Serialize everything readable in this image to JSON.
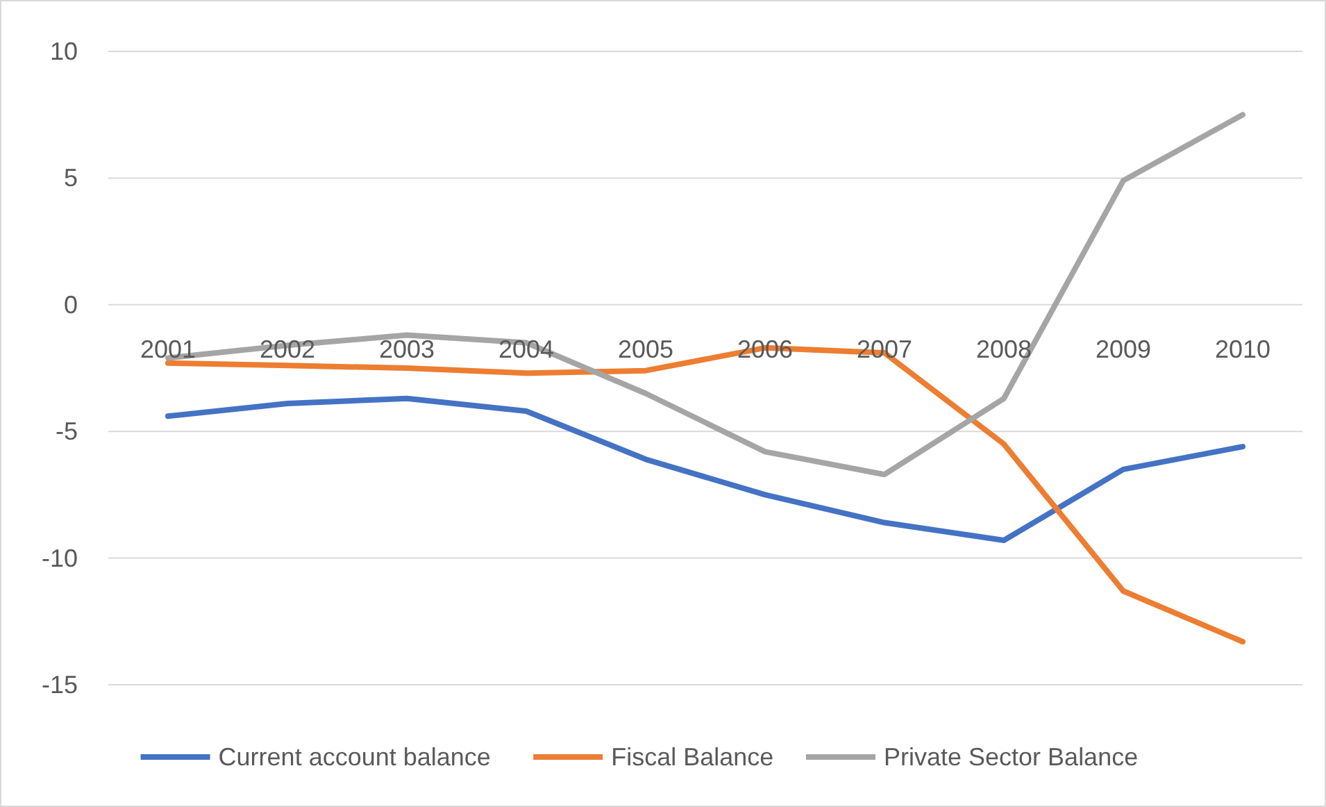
{
  "chart_data": {
    "type": "line",
    "categories": [
      "2001",
      "2002",
      "2003",
      "2004",
      "2005",
      "2006",
      "2007",
      "2008",
      "2009",
      "2010"
    ],
    "series": [
      {
        "name": "Current account balance",
        "color": "#4472c4",
        "values": [
          -4.4,
          -3.9,
          -3.7,
          -4.2,
          -6.1,
          -7.5,
          -8.6,
          -9.3,
          -6.5,
          -5.6
        ]
      },
      {
        "name": "Fiscal Balance",
        "color": "#ed7d31",
        "values": [
          -2.3,
          -2.4,
          -2.5,
          -2.7,
          -2.6,
          -1.7,
          -1.9,
          -5.5,
          -11.3,
          -13.3
        ]
      },
      {
        "name": "Private Sector Balance",
        "color": "#a5a5a5",
        "values": [
          -2.1,
          -1.6,
          -1.2,
          -1.5,
          -3.5,
          -5.8,
          -6.7,
          -3.7,
          4.9,
          7.5
        ]
      }
    ],
    "ylim": [
      -15,
      10
    ],
    "yticks": [
      -15,
      -10,
      -5,
      0,
      5,
      10
    ],
    "grid": "y",
    "legend": "bottom",
    "marker": "none",
    "line_style": "solid"
  }
}
